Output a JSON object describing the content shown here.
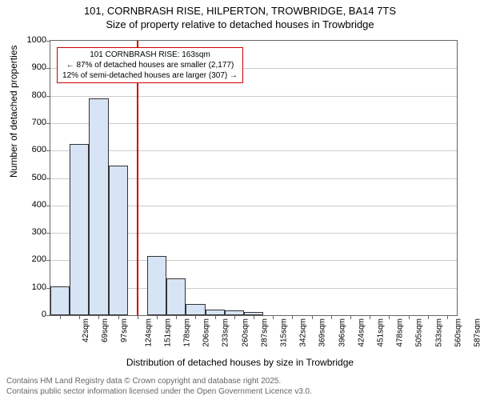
{
  "chart": {
    "type": "histogram",
    "title_line1": "101, CORNBRASH RISE, HILPERTON, TROWBRIDGE, BA14 7TS",
    "title_line2": "Size of property relative to detached houses in Trowbridge",
    "title_fontsize": 13,
    "y_label": "Number of detached properties",
    "x_label": "Distribution of detached houses by size in Trowbridge",
    "label_fontsize": 12,
    "tick_fontsize": 11,
    "x_tick_fontsize": 10,
    "ylim": [
      0,
      1000
    ],
    "ytick_step": 100,
    "y_ticks": [
      0,
      100,
      200,
      300,
      400,
      500,
      600,
      700,
      800,
      900,
      1000
    ],
    "x_tick_labels": [
      "42sqm",
      "69sqm",
      "97sqm",
      "124sqm",
      "151sqm",
      "178sqm",
      "206sqm",
      "233sqm",
      "260sqm",
      "287sqm",
      "315sqm",
      "342sqm",
      "369sqm",
      "396sqm",
      "424sqm",
      "451sqm",
      "478sqm",
      "505sqm",
      "533sqm",
      "560sqm",
      "587sqm"
    ],
    "values": [
      105,
      625,
      790,
      545,
      0,
      215,
      135,
      42,
      20,
      18,
      12,
      0,
      0,
      0,
      0,
      0,
      0,
      0,
      0,
      0,
      0
    ],
    "bar_color": "#d6e4f5",
    "bar_border_color": "#333333",
    "background_color": "#ffffff",
    "grid_color": "#cccccc",
    "border_color": "#666666",
    "reference_line": {
      "x_index": 4.45,
      "color": "#cc0000",
      "width": 2
    },
    "annotation": {
      "line1": "101 CORNBRASH RISE: 163sqm",
      "line2": "← 87% of detached houses are smaller (2,177)",
      "line3": "12% of semi-detached houses are larger (307) →",
      "border_color": "#cc0000",
      "fontsize": 10
    },
    "footer_line1": "Contains HM Land Registry data © Crown copyright and database right 2025.",
    "footer_line2": "Contains public sector information licensed under the Open Government Licence v3.0.",
    "footer_color": "#666666",
    "footer_fontsize": 10
  }
}
